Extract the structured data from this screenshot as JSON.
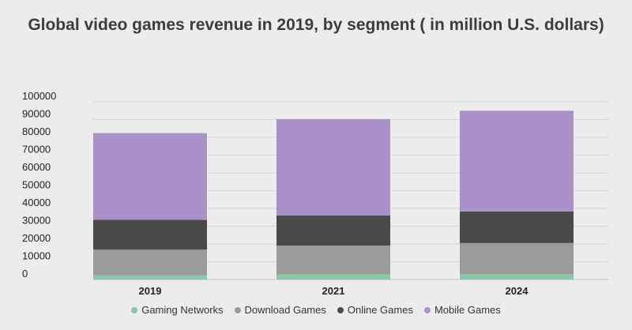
{
  "chart_data": {
    "type": "bar",
    "stacked": true,
    "title": "Global video games revenue in 2019, by segment ( in million U.S. dollars)",
    "xlabel": "",
    "ylabel": "",
    "categories": [
      "2019",
      "2021",
      "2024"
    ],
    "ylim": [
      0,
      100000
    ],
    "yticks": [
      0,
      10000,
      20000,
      30000,
      40000,
      50000,
      60000,
      70000,
      80000,
      90000,
      100000
    ],
    "grid": true,
    "legend_position": "bottom",
    "series": [
      {
        "name": "Gaming Networks",
        "color": "#86c9a6",
        "values": [
          2300,
          2800,
          3000
        ]
      },
      {
        "name": "Download Games",
        "color": "#9b9b9b",
        "values": [
          14500,
          16300,
          17500
        ]
      },
      {
        "name": "Online Games",
        "color": "#4a4a4a",
        "values": [
          16800,
          17000,
          17800
        ]
      },
      {
        "name": "Mobile Games",
        "color": "#ab91c9",
        "values": [
          48800,
          54200,
          56700
        ]
      }
    ]
  }
}
